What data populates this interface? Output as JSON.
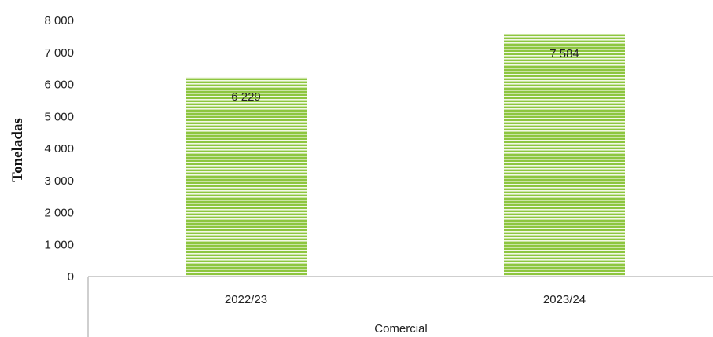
{
  "chart_data": {
    "type": "bar",
    "categories": [
      "2022/23",
      "2023/24"
    ],
    "values": [
      6229,
      7584
    ],
    "data_labels": [
      "6 229",
      "7 584"
    ],
    "group_label": "Comercial",
    "ylabel": "Toneladas",
    "ylim": [
      0,
      8000
    ],
    "yticks": [
      0,
      1000,
      2000,
      3000,
      4000,
      5000,
      6000,
      7000,
      8000
    ],
    "ytick_labels": [
      "0",
      "1 000",
      "2 000",
      "3 000",
      "4 000",
      "5 000",
      "6 000",
      "7 000",
      "8 000"
    ],
    "grid": false,
    "bar_color": "#8dc63f",
    "bar_stripe_color": "#f2f8e6"
  }
}
